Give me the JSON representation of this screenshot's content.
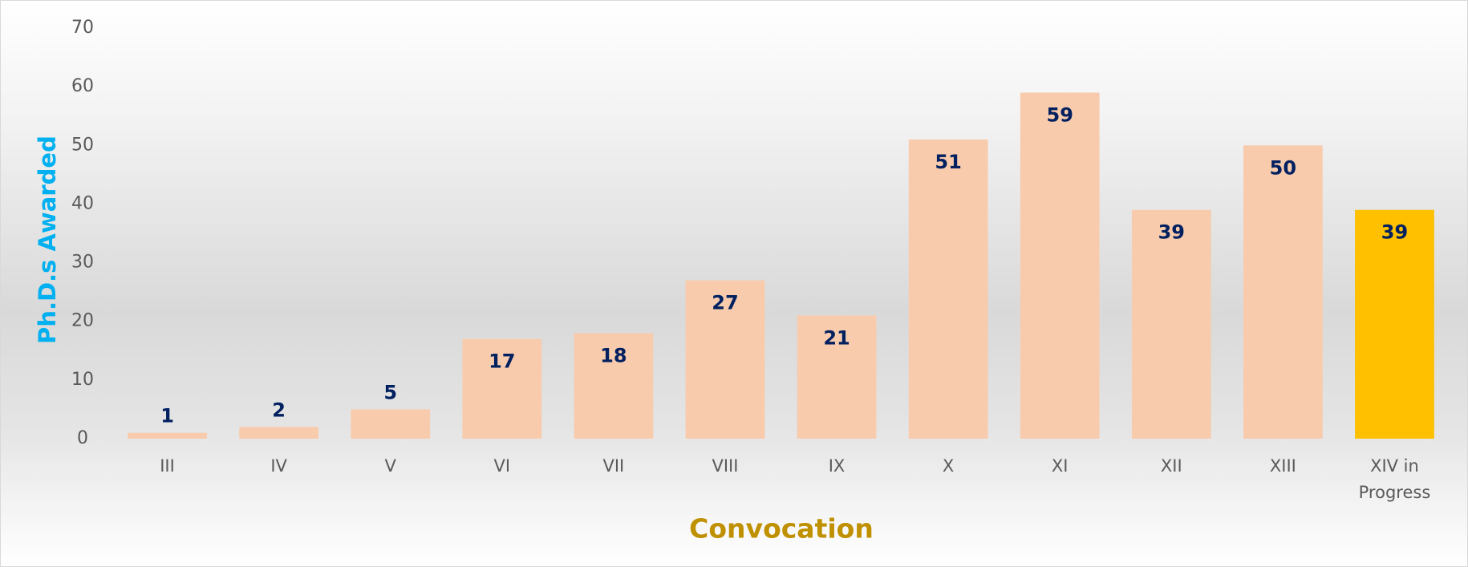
{
  "chart_data": {
    "type": "bar",
    "x_label": "Convocation",
    "y_label": "Ph.D.s  Awarded",
    "categories": [
      "III",
      "IV",
      "V",
      "VI",
      "VII",
      "VIII",
      "IX",
      "X",
      "XI",
      "XII",
      "XIII",
      "XIV in Progress"
    ],
    "values": [
      1,
      2,
      5,
      17,
      18,
      27,
      21,
      51,
      59,
      39,
      50,
      39
    ],
    "colors": [
      "#f8cbad",
      "#f8cbad",
      "#f8cbad",
      "#f8cbad",
      "#f8cbad",
      "#f8cbad",
      "#f8cbad",
      "#f8cbad",
      "#f8cbad",
      "#f8cbad",
      "#f8cbad",
      "#ffc000"
    ],
    "ylim": [
      0,
      70
    ],
    "yticks": [
      0,
      10,
      20,
      30,
      40,
      50,
      60,
      70
    ],
    "grid": false,
    "value_labels_shown": true
  }
}
